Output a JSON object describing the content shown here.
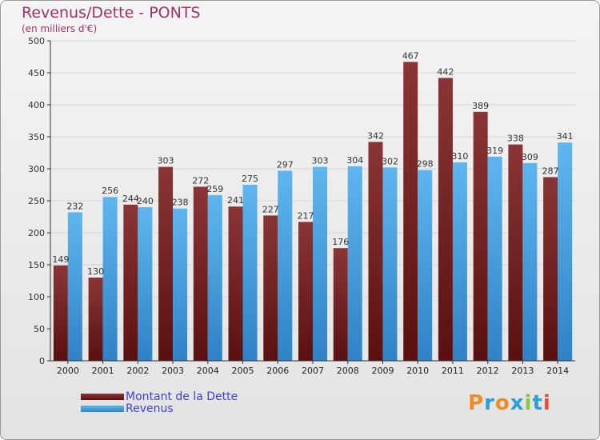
{
  "title": "Revenus/Dette - PONTS",
  "subtitle": "(en milliers d'€)",
  "logo": {
    "text": "Proxiti"
  },
  "colors": {
    "debt_dark": "#5a1010",
    "debt_light": "#8a3535",
    "revenue_dark": "#2f82c6",
    "revenue_light": "#5fb6ee",
    "title": "#a0336a",
    "legend_text": "#4040e0"
  },
  "chart_data": {
    "type": "bar",
    "title": "Revenus/Dette - PONTS",
    "subtitle": "(en milliers d'€)",
    "categories": [
      "2000",
      "2001",
      "2002",
      "2003",
      "2004",
      "2005",
      "2006",
      "2007",
      "2008",
      "2009",
      "2010",
      "2011",
      "2012",
      "2013",
      "2014"
    ],
    "series": [
      {
        "name": "Montant de la Dette",
        "values": [
          149,
          130,
          244,
          303,
          272,
          241,
          227,
          217,
          176,
          342,
          467,
          442,
          389,
          338,
          287
        ]
      },
      {
        "name": "Revenus",
        "values": [
          232,
          256,
          240,
          238,
          259,
          275,
          297,
          303,
          304,
          302,
          298,
          310,
          319,
          309,
          341
        ]
      }
    ],
    "ylim": [
      0,
      500
    ],
    "yticks": [
      0,
      50,
      100,
      150,
      200,
      250,
      300,
      350,
      400,
      450,
      500
    ],
    "grid": true,
    "legend_position": "bottom-left"
  }
}
